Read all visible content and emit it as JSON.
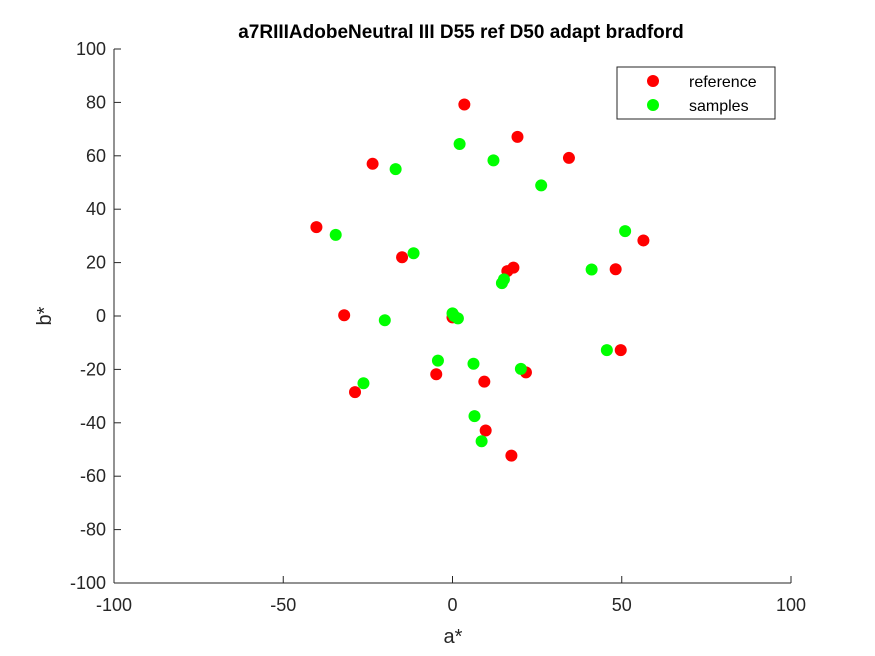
{
  "chart_data": {
    "type": "scatter",
    "title": "a7RIIIAdobeNeutral III D55 ref D50 adapt bradford",
    "xlabel": "a*",
    "ylabel": "b*",
    "xlim": [
      -100,
      100
    ],
    "ylim": [
      -100,
      100
    ],
    "xticks": [
      -100,
      -50,
      0,
      50,
      100
    ],
    "yticks": [
      -100,
      -80,
      -60,
      -40,
      -20,
      0,
      20,
      40,
      60,
      80,
      100
    ],
    "xtick_labels": [
      "-100",
      "-50",
      "0",
      "50",
      "100"
    ],
    "ytick_labels": [
      "-100",
      "-80",
      "-60",
      "-40",
      "-20",
      "0",
      "20",
      "40",
      "60",
      "80",
      "100"
    ],
    "grid": false,
    "legend_position": "top-right",
    "series": [
      {
        "name": "reference",
        "color": "#ff0000",
        "points": [
          [
            3.5,
            79.2
          ],
          [
            19.2,
            67.1
          ],
          [
            -23.6,
            57.0
          ],
          [
            34.4,
            59.2
          ],
          [
            -40.2,
            33.3
          ],
          [
            56.4,
            28.3
          ],
          [
            -14.9,
            22.0
          ],
          [
            18.0,
            18.1
          ],
          [
            16.2,
            16.8
          ],
          [
            48.2,
            17.5
          ],
          [
            -32.0,
            0.3
          ],
          [
            0.0,
            -0.5
          ],
          [
            49.7,
            -12.8
          ],
          [
            -4.8,
            -21.8
          ],
          [
            9.4,
            -24.6
          ],
          [
            21.7,
            -21.1
          ],
          [
            -28.8,
            -28.5
          ],
          [
            9.8,
            -42.9
          ],
          [
            17.4,
            -52.3
          ]
        ]
      },
      {
        "name": "samples",
        "color": "#00ff00",
        "points": [
          [
            2.1,
            64.4
          ],
          [
            12.1,
            58.3
          ],
          [
            -16.8,
            55.0
          ],
          [
            26.2,
            48.9
          ],
          [
            -34.5,
            30.4
          ],
          [
            51.0,
            31.8
          ],
          [
            -11.5,
            23.5
          ],
          [
            41.1,
            17.4
          ],
          [
            15.2,
            13.7
          ],
          [
            14.6,
            12.3
          ],
          [
            -20.0,
            -1.6
          ],
          [
            0.0,
            1.0
          ],
          [
            0.5,
            0.0
          ],
          [
            1.6,
            -0.9
          ],
          [
            45.6,
            -12.8
          ],
          [
            -4.3,
            -16.7
          ],
          [
            6.2,
            -17.9
          ],
          [
            20.2,
            -19.8
          ],
          [
            -26.3,
            -25.2
          ],
          [
            6.5,
            -37.5
          ],
          [
            8.6,
            -46.9
          ]
        ]
      }
    ]
  }
}
